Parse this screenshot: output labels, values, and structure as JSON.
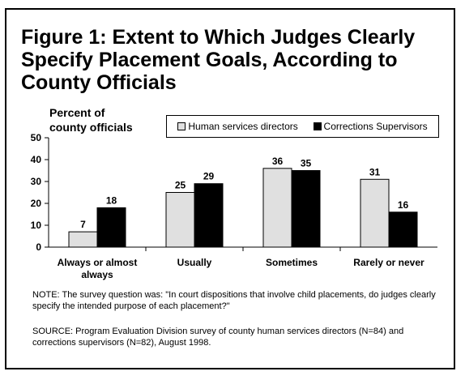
{
  "title": "Figure 1: Extent to Which Judges Clearly Specify Placement Goals, According to County Officials",
  "ylabel_line1": "Percent of",
  "ylabel_line2": "county officials",
  "note": "NOTE: The survey question was: \"In court dispositions that involve child placements, do judges clearly specify the intended purpose of each placement?\"",
  "source": "SOURCE: Program Evaluation Division survey of county human services directors (N=84) and corrections supervisors (N=82), August 1998.",
  "colors": {
    "series0": "#e0e0e0",
    "series1": "#000000"
  },
  "chart_data": {
    "type": "bar",
    "title": "Figure 1: Extent to Which Judges Clearly Specify Placement Goals, According to County Officials",
    "ylabel": "Percent of county officials",
    "xlabel": "",
    "ylim": [
      0,
      50
    ],
    "yticks": [
      0,
      10,
      20,
      30,
      40,
      50
    ],
    "grid": false,
    "legend": "top-right",
    "categories": [
      "Always or almost always",
      "Usually",
      "Sometimes",
      "Rarely or never"
    ],
    "category_lines": [
      [
        "Always or almost",
        "always"
      ],
      [
        "Usually"
      ],
      [
        "Sometimes"
      ],
      [
        "Rarely or never"
      ]
    ],
    "series": [
      {
        "name": "Human services directors",
        "values": [
          7,
          25,
          36,
          31
        ]
      },
      {
        "name": "Corrections Supervisors",
        "values": [
          18,
          29,
          35,
          16
        ]
      }
    ]
  }
}
